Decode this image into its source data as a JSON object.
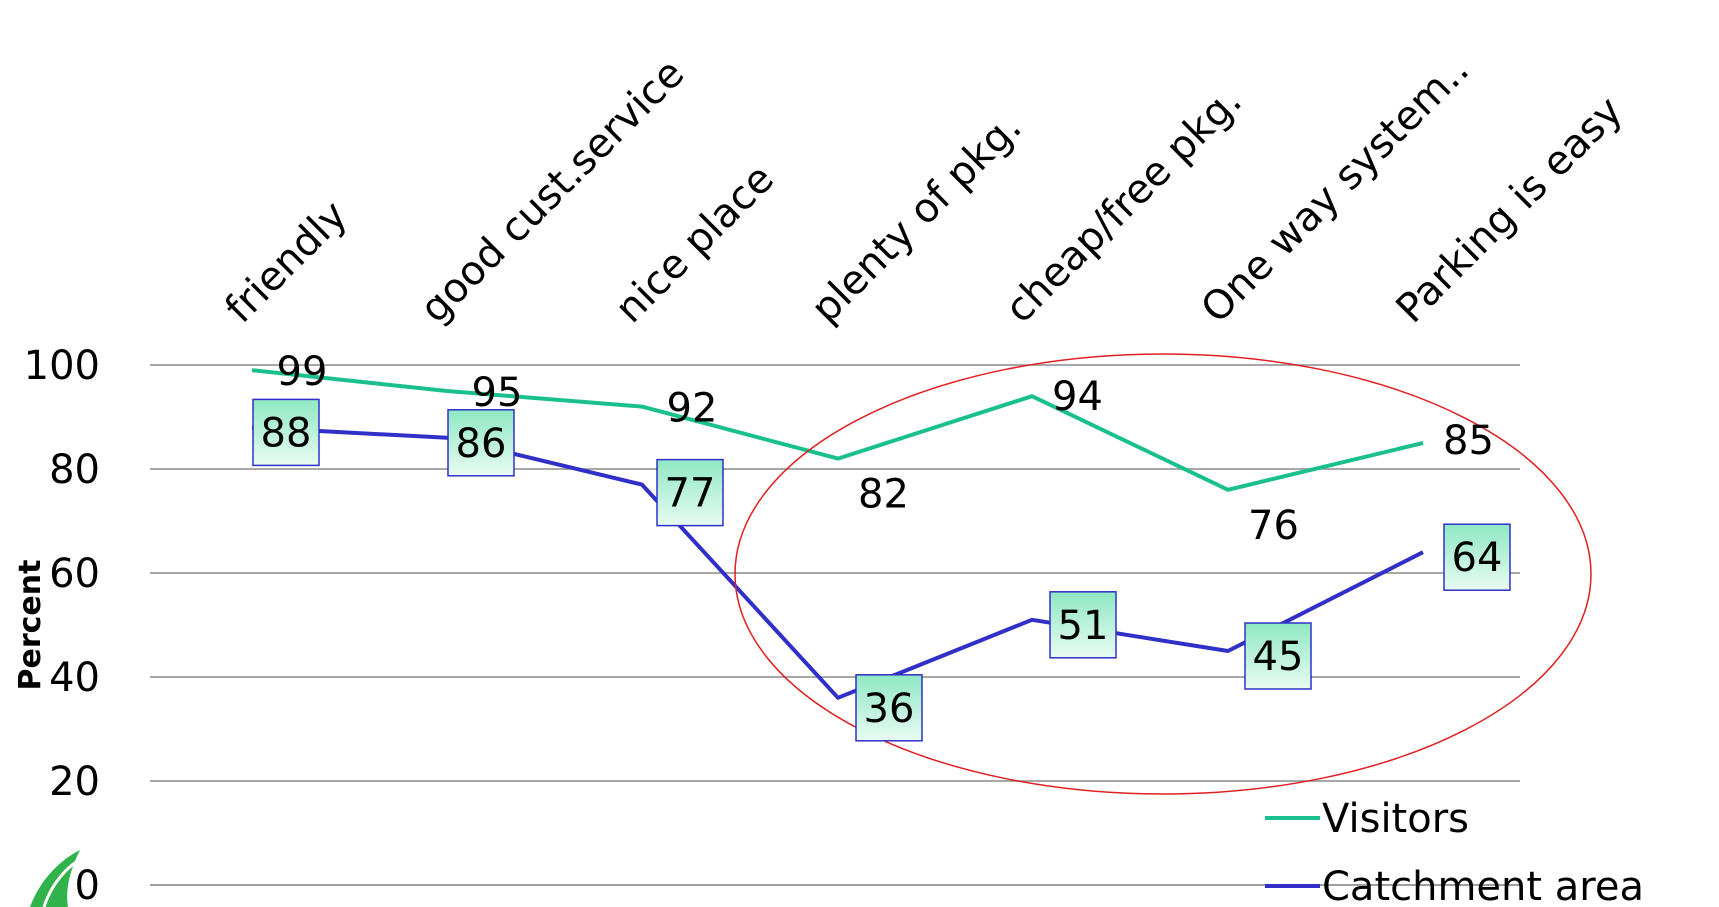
{
  "chart_data": {
    "type": "line",
    "categories": [
      "friendly",
      "good cust.service",
      "nice place",
      "plenty of pkg.",
      "cheap/free pkg.",
      "One way system..",
      "Parking is easy"
    ],
    "series": [
      {
        "name": "Visitors",
        "values": [
          99,
          95,
          92,
          82,
          94,
          76,
          85
        ],
        "color": "#19c08d"
      },
      {
        "name": "Catchment area",
        "values": [
          88,
          86,
          77,
          36,
          51,
          45,
          64
        ],
        "color": "#3030c8"
      }
    ],
    "ylabel": "Percent",
    "xlabel": "",
    "title": "",
    "ylim": [
      0,
      100
    ],
    "yticks": [
      0,
      20,
      40,
      60,
      80,
      100
    ],
    "grid": true,
    "legend": "bottom-right",
    "annotation": {
      "shape": "ellipse",
      "color": "#e02020",
      "around": "plenty of pkg. – Parking is easy"
    },
    "logo": "green-leaf-icon"
  }
}
